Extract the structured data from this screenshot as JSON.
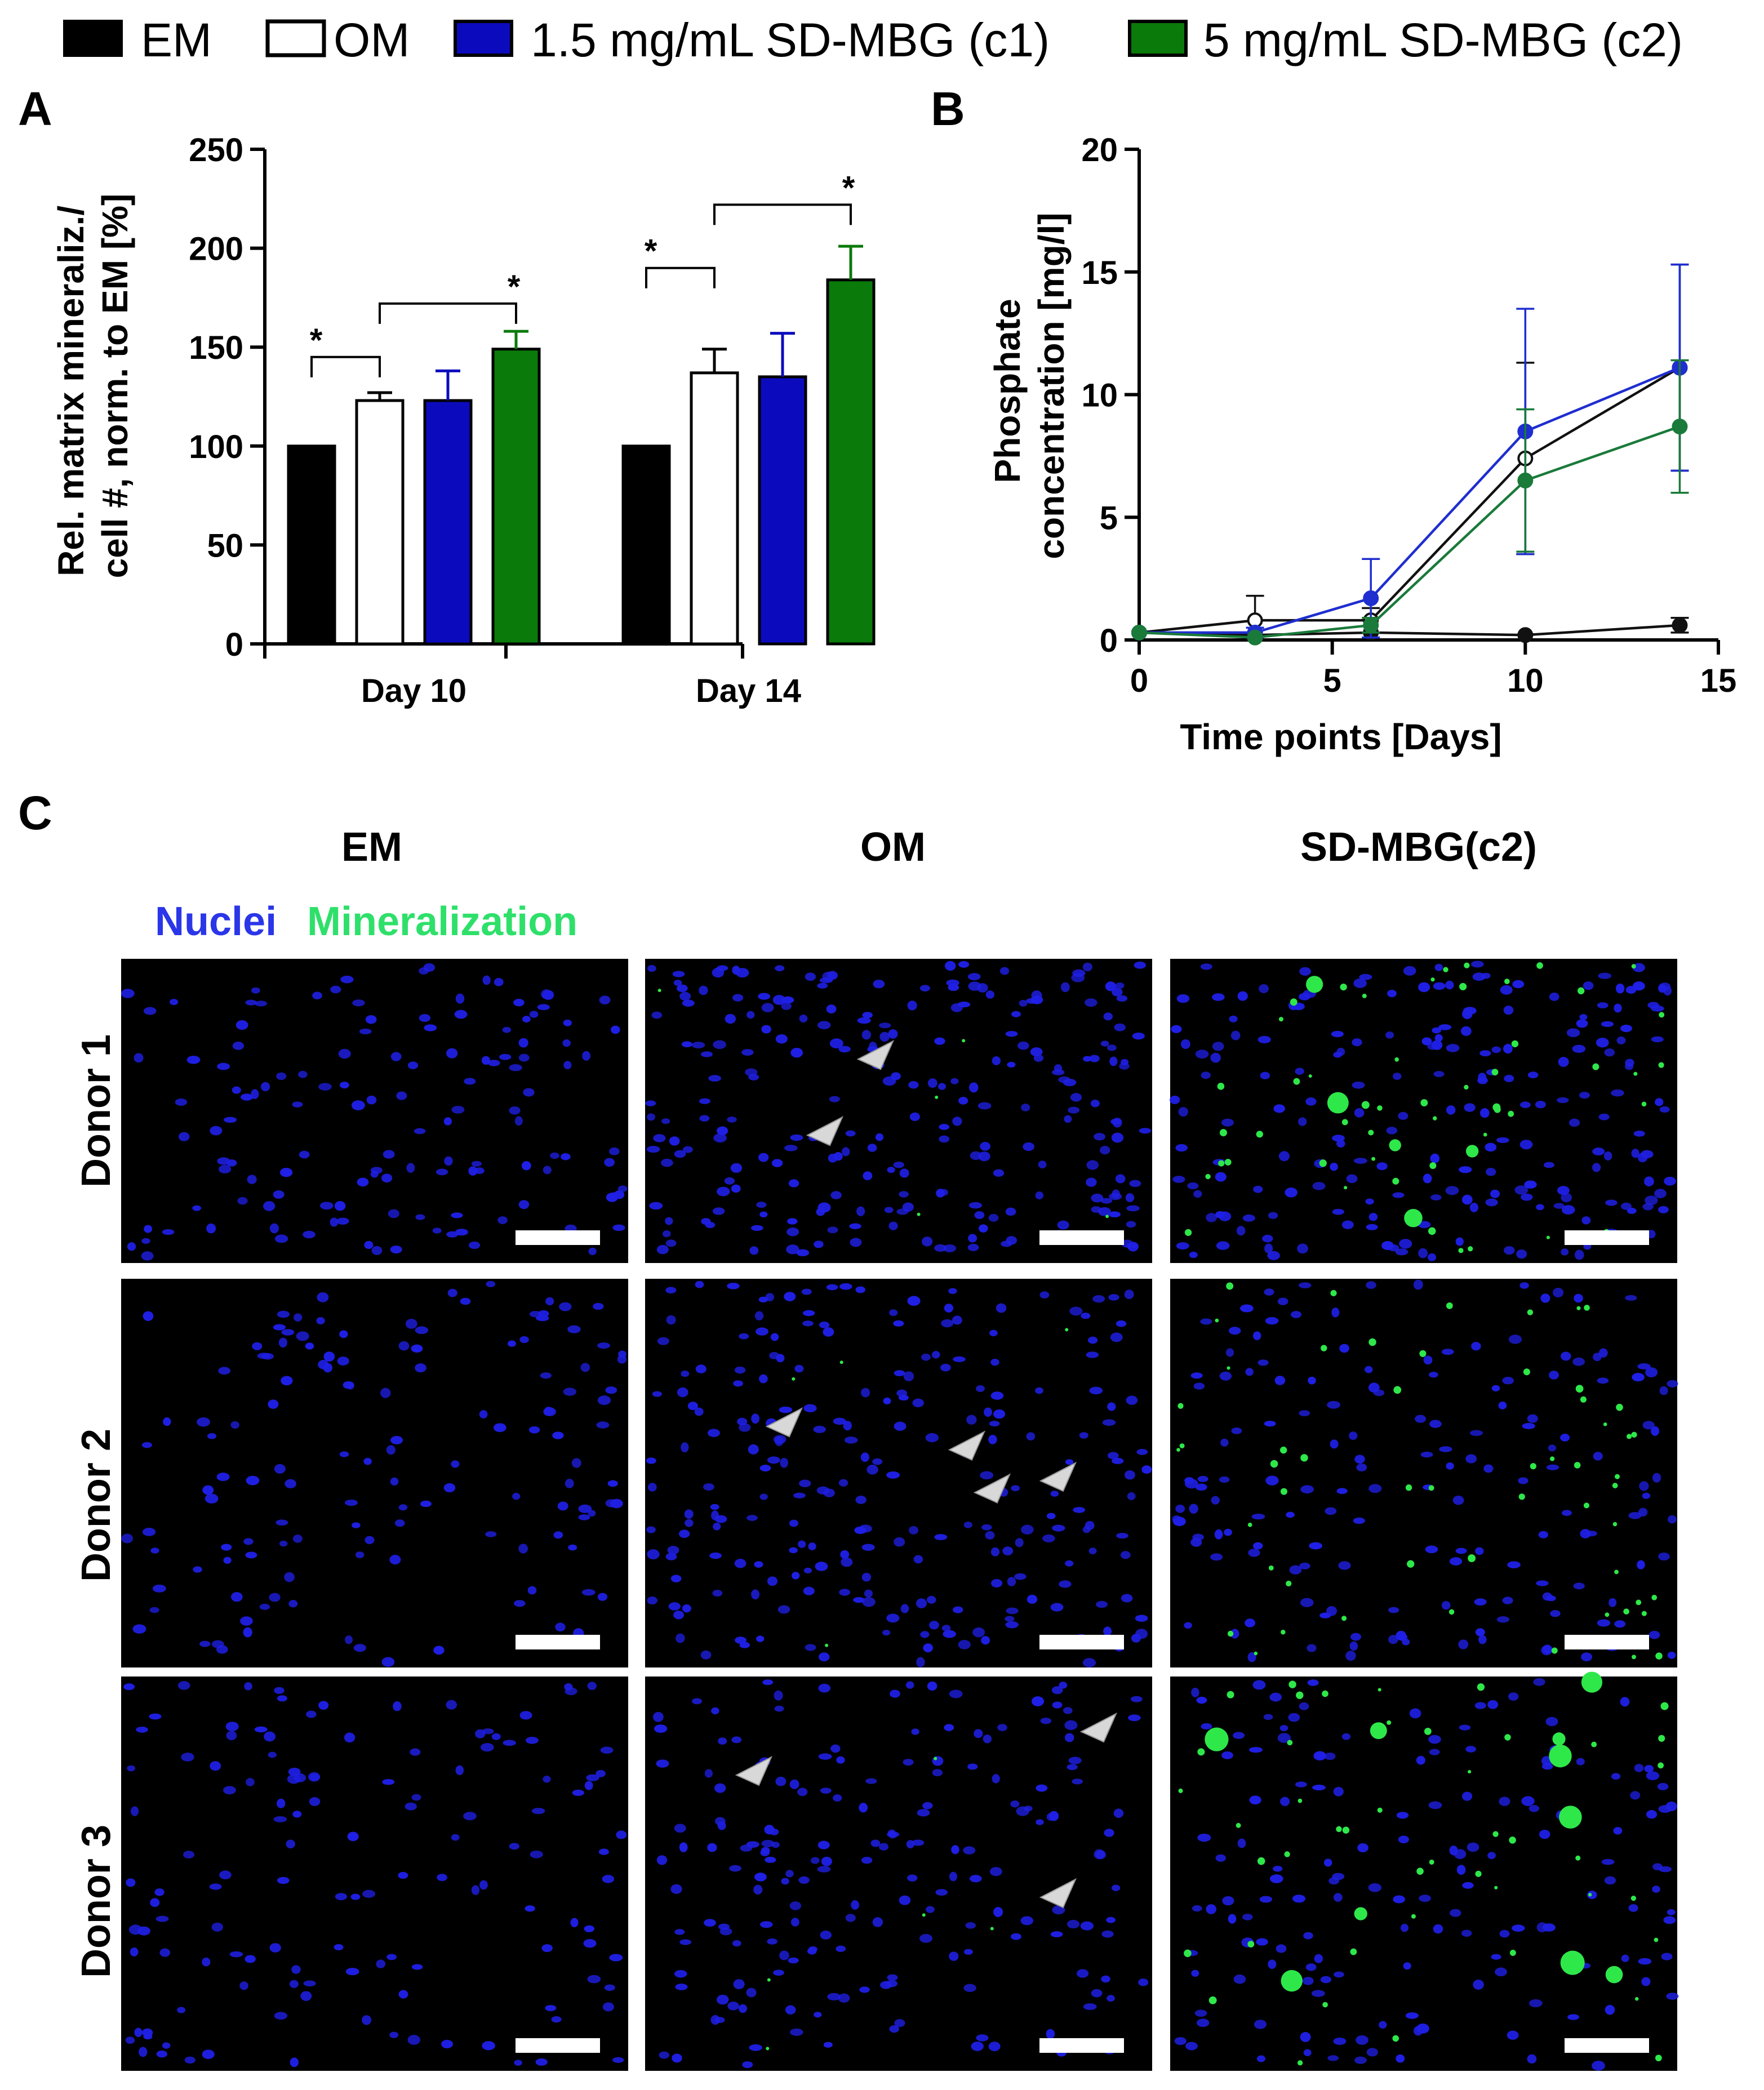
{
  "legend": {
    "items": [
      {
        "label": "EM",
        "color": "#000000",
        "stroke": "#000000"
      },
      {
        "label": "OM",
        "color": "#ffffff",
        "stroke": "#000000"
      },
      {
        "label": "1.5 mg/mL SD-MBG (c1)",
        "color": "#0b0bbd",
        "stroke": "#000000"
      },
      {
        "label": "5 mg/mL SD-MBG (c2)",
        "color": "#0a7a0a",
        "stroke": "#000000"
      }
    ]
  },
  "chart_data": [
    {
      "panel": "A",
      "type": "bar",
      "title": "",
      "xlabel": "",
      "ylabel": "Rel. matrix mineraliz./ cell #, norm. to EM [%]",
      "ylabel_lines": [
        "Rel. matrix mineraliz./",
        "cell #, norm. to EM [%]"
      ],
      "ylim": [
        0,
        250
      ],
      "yticks": [
        0,
        50,
        100,
        150,
        200,
        250
      ],
      "categories": [
        "Day 10",
        "Day 14"
      ],
      "series": [
        {
          "name": "EM",
          "values": [
            100,
            100
          ],
          "errors": [
            0,
            0
          ],
          "color": "#000000"
        },
        {
          "name": "OM",
          "values": [
            123,
            137
          ],
          "errors": [
            4,
            12
          ],
          "color": "#ffffff"
        },
        {
          "name": "1.5 mg/mL SD-MBG (c1)",
          "values": [
            123,
            135
          ],
          "errors": [
            15,
            22
          ],
          "color": "#0b0bbd"
        },
        {
          "name": "5 mg/mL SD-MBG (c2)",
          "values": [
            149,
            184
          ],
          "errors": [
            9,
            17
          ],
          "color": "#0a7a0a"
        }
      ],
      "significance": [
        {
          "group": 0,
          "from": 0,
          "to": 1,
          "level": 145,
          "label": "*"
        },
        {
          "group": 0,
          "from": 1,
          "to": 3,
          "level": 172,
          "label": "*"
        },
        {
          "group": 1,
          "from": 0,
          "to": 1,
          "level": 190,
          "label": "*"
        },
        {
          "group": 1,
          "from": 1,
          "to": 3,
          "level": 222,
          "label": "*"
        }
      ]
    },
    {
      "panel": "B",
      "type": "line",
      "title": "",
      "xlabel": "Time points [Days]",
      "ylabel": "Phosphate concentration [mg/l]",
      "ylabel_lines": [
        "Phosphate",
        "concentration [mg/l]"
      ],
      "xlim": [
        0,
        15
      ],
      "ylim": [
        0,
        20
      ],
      "xticks": [
        0,
        5,
        10,
        15
      ],
      "yticks": [
        0,
        5,
        10,
        15,
        20
      ],
      "series": [
        {
          "name": "EM",
          "color": "#111111",
          "marker": "filled",
          "x": [
            0,
            3,
            6,
            10,
            14
          ],
          "y": [
            0.3,
            0.2,
            0.3,
            0.2,
            0.6
          ],
          "errors": [
            0.05,
            0.1,
            0.1,
            0.1,
            0.3
          ]
        },
        {
          "name": "OM",
          "color": "#111111",
          "marker": "open",
          "x": [
            0,
            3,
            6,
            10,
            14
          ],
          "y": [
            0.3,
            0.8,
            0.8,
            7.4,
            11.1
          ],
          "errors": [
            0.05,
            1.0,
            0.5,
            3.9,
            4.2
          ]
        },
        {
          "name": "1.5 mg/mL SD-MBG (c1)",
          "color": "#1f2ecf",
          "marker": "filled",
          "x": [
            0,
            3,
            6,
            10,
            14
          ],
          "y": [
            0.3,
            0.3,
            1.7,
            8.5,
            11.1
          ],
          "errors": [
            0.05,
            0.2,
            1.6,
            5.0,
            4.2
          ]
        },
        {
          "name": "5 mg/mL SD-MBG (c2)",
          "color": "#1a7a3a",
          "marker": "filled",
          "x": [
            0,
            3,
            6,
            10,
            14
          ],
          "y": [
            0.3,
            0.1,
            0.6,
            6.5,
            8.7
          ],
          "errors": [
            0.05,
            0.1,
            0.3,
            2.9,
            2.7
          ]
        }
      ]
    }
  ],
  "panels": {
    "a_letter": "A",
    "b_letter": "B",
    "c_letter": "C"
  },
  "micrographs": {
    "columns": [
      "EM",
      "OM",
      "SD-MBG(c2)"
    ],
    "rows": [
      "Donor 1",
      "Donor 2",
      "Donor 3"
    ],
    "stain_legend": {
      "nuclei": {
        "label": "Nuclei",
        "color": "#2a36e8"
      },
      "mineralization": {
        "label": "Mineralization",
        "color": "#2ee06a"
      }
    },
    "background_color": "#000000",
    "nuclei_color": "#1f1fe6",
    "mineral_color": "#2ee84a",
    "scalebar_color": "#ffffff",
    "arrowhead_color": "#d8d8d8",
    "arrowhead_counts": [
      [
        0,
        2,
        0
      ],
      [
        0,
        4,
        0
      ],
      [
        0,
        3,
        0
      ]
    ],
    "mineral_level": [
      [
        0,
        1,
        3
      ],
      [
        0,
        1,
        3
      ],
      [
        0,
        1,
        3
      ]
    ],
    "nuclei_density": [
      [
        130,
        230,
        200
      ],
      [
        130,
        230,
        160
      ],
      [
        130,
        180,
        150
      ]
    ]
  }
}
